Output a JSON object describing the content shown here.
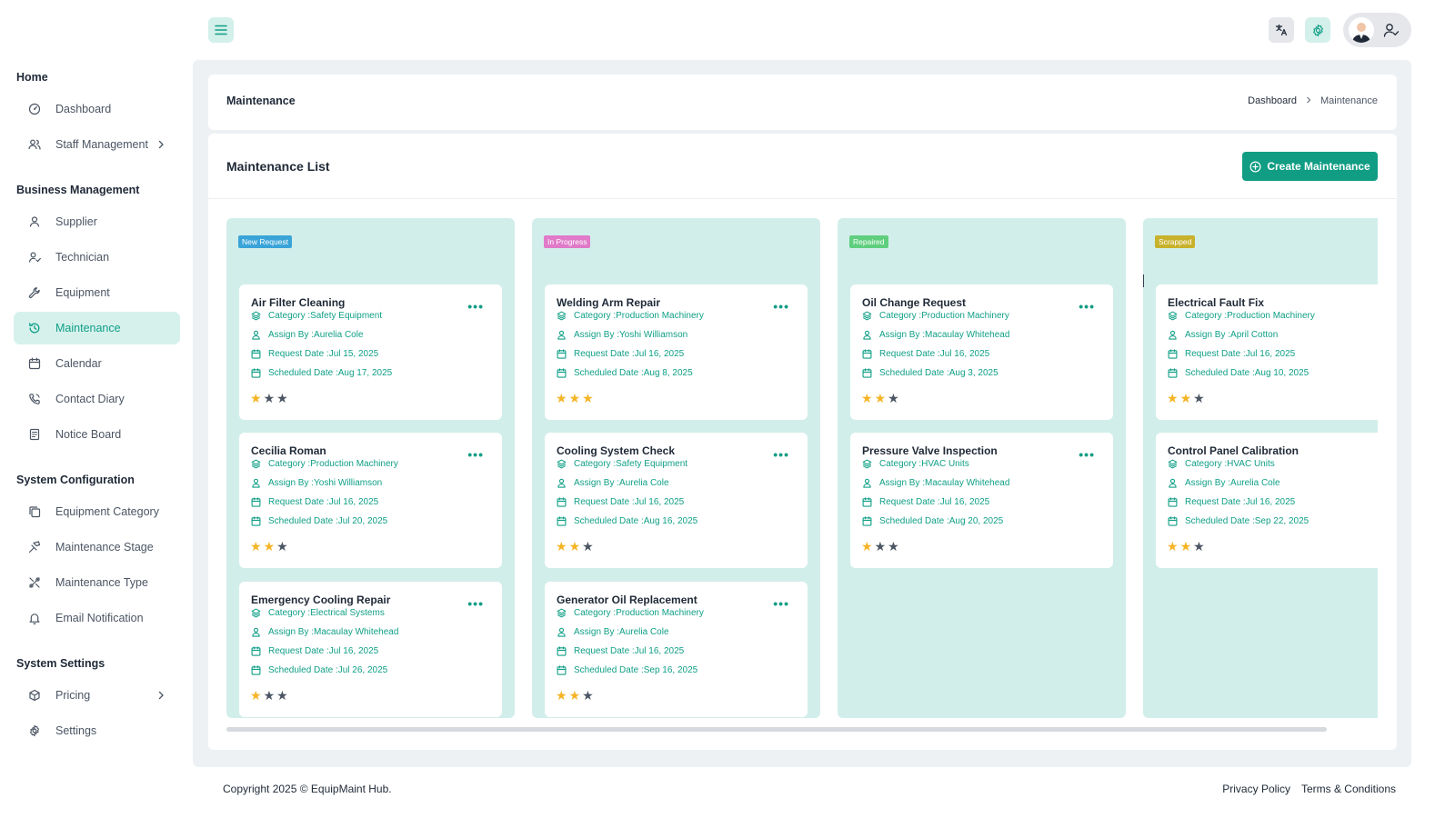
{
  "sidebar": {
    "sections": [
      {
        "title": "Home",
        "items": [
          {
            "label": "Dashboard",
            "icon": "dashboard-icon"
          },
          {
            "label": "Staff Management",
            "icon": "users-icon",
            "has_submenu": true
          }
        ]
      },
      {
        "title": "Business Management",
        "items": [
          {
            "label": "Supplier",
            "icon": "user-icon"
          },
          {
            "label": "Technician",
            "icon": "user-check-icon"
          },
          {
            "label": "Equipment",
            "icon": "wrench-icon"
          },
          {
            "label": "Maintenance",
            "icon": "history-icon",
            "active": true
          },
          {
            "label": "Calendar",
            "icon": "calendar-icon"
          },
          {
            "label": "Contact Diary",
            "icon": "phone-icon"
          },
          {
            "label": "Notice Board",
            "icon": "notice-icon"
          }
        ]
      },
      {
        "title": "System Configuration",
        "items": [
          {
            "label": "Equipment Category",
            "icon": "copy-icon"
          },
          {
            "label": "Maintenance Stage",
            "icon": "stage-icon"
          },
          {
            "label": "Maintenance Type",
            "icon": "tools-icon"
          },
          {
            "label": "Email Notification",
            "icon": "bell-icon"
          }
        ]
      },
      {
        "title": "System Settings",
        "items": [
          {
            "label": "Pricing",
            "icon": "package-icon",
            "has_submenu": true
          },
          {
            "label": "Settings",
            "icon": "gear-icon"
          }
        ]
      }
    ]
  },
  "topbar": {
    "menu_icon": "hamburger-icon",
    "language_icon": "translate-icon",
    "settings_icon": "gear-icon",
    "profile_icon": "user-check-icon"
  },
  "breadcrumb": {
    "title": "Maintenance",
    "items": [
      "Dashboard",
      "Maintenance"
    ]
  },
  "list": {
    "title": "Maintenance List",
    "create_label": "Create Maintenance"
  },
  "colors": {
    "accent": "#109d84",
    "new_request": "#3aa4d8",
    "in_progress": "#e07ac9",
    "repaired": "#5fcf7e",
    "scrapped": "#c8b22c",
    "star_on": "#f5b425",
    "star_off": "#4b5563"
  },
  "field_labels": {
    "category": "Category : ",
    "assign_by": "Assign By : ",
    "request_date": "Request Date : ",
    "scheduled_date": "Scheduled Date : "
  },
  "columns": [
    {
      "status": "New Request",
      "color": "#3aa4d8",
      "tasks": [
        {
          "title": "Air Filter Cleaning",
          "category": "Safety Equipment",
          "assign_by": "Aurelia Cole",
          "request_date": "Jul 15, 2025",
          "scheduled_date": "Aug 17, 2025",
          "rating": 1
        },
        {
          "title": "Cecilia Roman",
          "category": "Production Machinery",
          "assign_by": "Yoshi Williamson",
          "request_date": "Jul 16, 2025",
          "scheduled_date": "Jul 20, 2025",
          "rating": 2
        },
        {
          "title": "Emergency Cooling Repair",
          "category": "Electrical Systems",
          "assign_by": "Macaulay Whitehead",
          "request_date": "Jul 16, 2025",
          "scheduled_date": "Jul 26, 2025",
          "rating": 1
        }
      ]
    },
    {
      "status": "In Progress",
      "color": "#e07ac9",
      "tasks": [
        {
          "title": "Welding Arm Repair",
          "category": "Production Machinery",
          "assign_by": "Yoshi Williamson",
          "request_date": "Jul 16, 2025",
          "scheduled_date": "Aug 8, 2025",
          "rating": 3
        },
        {
          "title": "Cooling System Check",
          "category": "Safety Equipment",
          "assign_by": "Aurelia Cole",
          "request_date": "Jul 16, 2025",
          "scheduled_date": "Aug 16, 2025",
          "rating": 2
        },
        {
          "title": "Generator Oil Replacement",
          "category": "Production Machinery",
          "assign_by": "Aurelia Cole",
          "request_date": "Jul 16, 2025",
          "scheduled_date": "Sep 16, 2025",
          "rating": 2
        }
      ]
    },
    {
      "status": "Repaired",
      "color": "#5fcf7e",
      "tasks": [
        {
          "title": "Oil Change Request",
          "category": "Production Machinery",
          "assign_by": "Macaulay Whitehead",
          "request_date": "Jul 16, 2025",
          "scheduled_date": "Aug 3, 2025",
          "rating": 2
        },
        {
          "title": "Pressure Valve Inspection",
          "category": "HVAC Units",
          "assign_by": "Macaulay Whitehead",
          "request_date": "Jul 16, 2025",
          "scheduled_date": "Aug 20, 2025",
          "rating": 1
        }
      ]
    },
    {
      "status": "Scrapped",
      "color": "#c8b22c",
      "tasks": [
        {
          "title": "Electrical Fault Fix",
          "category": "Production Machinery",
          "assign_by": "April Cotton",
          "request_date": "Jul 16, 2025",
          "scheduled_date": "Aug 10, 2025",
          "rating": 2
        },
        {
          "title": "Control Panel Calibration",
          "category": "HVAC Units",
          "assign_by": "Aurelia Cole",
          "request_date": "Jul 16, 2025",
          "scheduled_date": "Sep 22, 2025",
          "rating": 2
        }
      ]
    }
  ],
  "footer": {
    "copyright": "Copyright 2025 © EquipMaint Hub.",
    "privacy": "Privacy Policy",
    "terms": "Terms & Conditions"
  }
}
